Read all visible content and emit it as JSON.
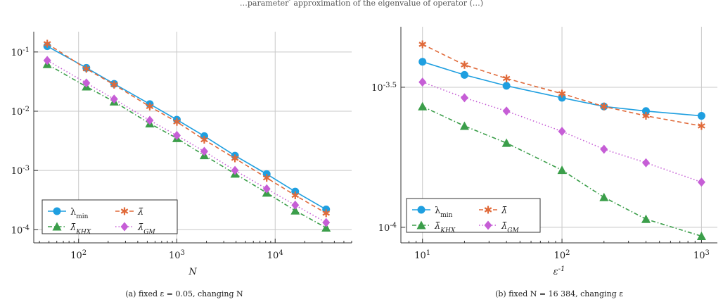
{
  "figure": {
    "top_caption": "…parameter ̃ approximation of the eigenvalue of operator (…)",
    "legend_labels": [
      "λmin",
      "λ̄",
      "λ̄KHX",
      "λ̄GM"
    ]
  },
  "chart_data": [
    {
      "type": "line",
      "caption": "(a) fixed ε = 0.05, changing N",
      "xlabel": "N",
      "ylabel": "",
      "x_scale": "log",
      "y_scale": "log",
      "x_ticks": [
        "10^2",
        "10^3",
        "10^4"
      ],
      "y_ticks": [
        "10^-1",
        "10^-2",
        "10^-3",
        "10^-4"
      ],
      "xlim": [
        35,
        60000
      ],
      "ylim": [
        6e-05,
        0.22
      ],
      "grid": true,
      "legend_placement": "bottom-left",
      "x": [
        48,
        120,
        230,
        530,
        1000,
        1900,
        3900,
        8200,
        16000,
        33000
      ],
      "series": [
        {
          "name": "λmin",
          "color": "#1f9fe0",
          "marker": "circle",
          "dash": "solid",
          "values": [
            0.125,
            0.054,
            0.029,
            0.0132,
            0.0072,
            0.0038,
            0.00178,
            0.00087,
            0.00044,
            0.00022
          ]
        },
        {
          "name": "λ̄",
          "color": "#e06a3a",
          "marker": "star",
          "dash": "dashed",
          "values": [
            0.138,
            0.052,
            0.028,
            0.012,
            0.0066,
            0.0033,
            0.0016,
            0.00075,
            0.00038,
            0.00019
          ]
        },
        {
          "name": "λ̄KHX",
          "color": "#3b9e4a",
          "marker": "triangle",
          "dash": "dashdot",
          "values": [
            0.062,
            0.026,
            0.0145,
            0.0062,
            0.0035,
            0.0018,
            0.00088,
            0.00042,
            0.00021,
            0.000108
          ]
        },
        {
          "name": "λ̄GM",
          "color": "#c65ed6",
          "marker": "diamond",
          "dash": "dotted",
          "values": [
            0.072,
            0.03,
            0.016,
            0.007,
            0.0039,
            0.0021,
            0.001,
            0.00049,
            0.00026,
            0.000132
          ]
        }
      ]
    },
    {
      "type": "line",
      "caption": "(b) fixed N = 16 384, changing ε",
      "xlabel": "ε^-1",
      "ylabel": "",
      "x_scale": "log",
      "y_scale": "log",
      "x_ticks": [
        "10^1",
        "10^2",
        "10^3"
      ],
      "y_ticks": [
        "10^-3.5",
        "10^-4"
      ],
      "xlim": [
        7,
        1300
      ],
      "ylim": [
        8.8e-05,
        0.00052
      ],
      "grid": true,
      "legend_placement": "bottom-left",
      "x": [
        10,
        20,
        40,
        100,
        200,
        400,
        1000
      ],
      "series": [
        {
          "name": "λmin",
          "color": "#1f9fe0",
          "marker": "circle",
          "dash": "solid",
          "values": [
            0.00039,
            0.00035,
            0.00032,
            0.00029,
            0.00027,
            0.00026,
            0.00025
          ]
        },
        {
          "name": "λ̄",
          "color": "#e06a3a",
          "marker": "star",
          "dash": "dashed",
          "values": [
            0.00045,
            0.00038,
            0.00034,
            0.0003,
            0.00027,
            0.00025,
            0.00023
          ]
        },
        {
          "name": "λ̄KHX",
          "color": "#3b9e4a",
          "marker": "triangle",
          "dash": "dashdot",
          "values": [
            0.00027,
            0.00023,
            0.0002,
            0.00016,
            0.000128,
            0.000107,
            9.3e-05
          ]
        },
        {
          "name": "λ̄GM",
          "color": "#c65ed6",
          "marker": "diamond",
          "dash": "dotted",
          "values": [
            0.00033,
            0.00029,
            0.00026,
            0.00022,
            0.00019,
            0.00017,
            0.000145
          ]
        }
      ]
    }
  ]
}
